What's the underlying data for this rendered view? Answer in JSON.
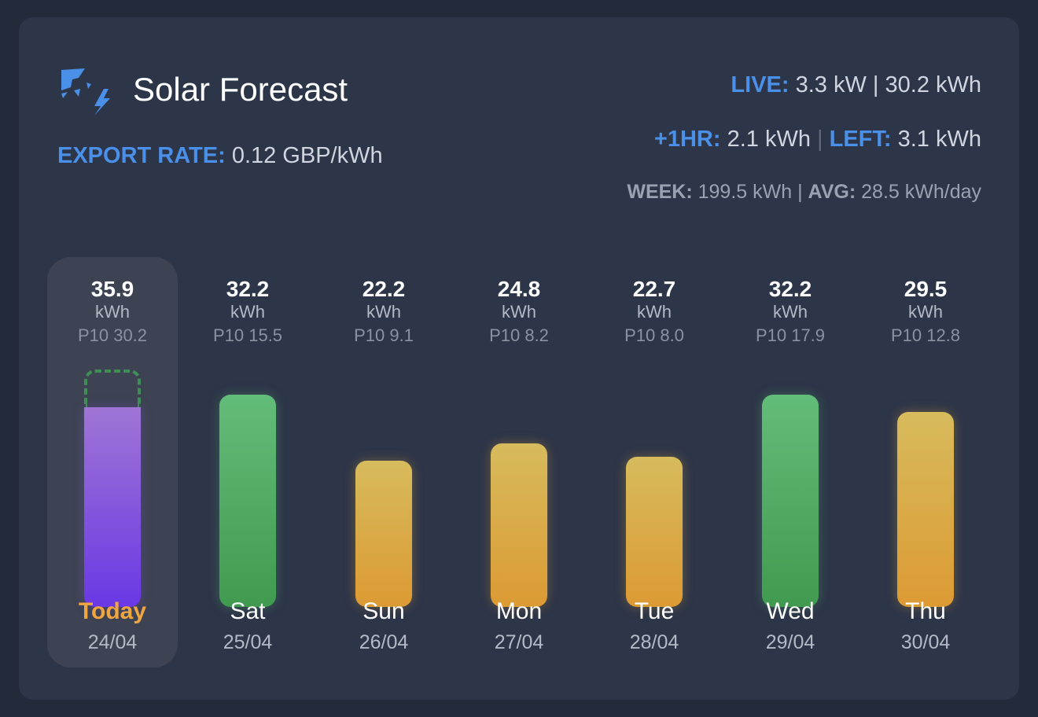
{
  "header": {
    "title": "Solar Forecast",
    "logo_icon": "solar-bolt-icon"
  },
  "export_rate": {
    "label": "EXPORT RATE:",
    "value": "0.12 GBP/kWh"
  },
  "live": {
    "label": "LIVE:",
    "value": "3.3 kW | 30.2 kWh"
  },
  "hour": {
    "label": "+1HR:",
    "value": "2.1 kWh",
    "separator": "|",
    "left_label": "LEFT:",
    "left_value": "3.1 kWh"
  },
  "week": {
    "label": "WEEK:",
    "value": "199.5 kWh |",
    "avg_label": "AVG:",
    "avg_value": "28.5 kWh/day"
  },
  "colors": {
    "accent_blue": "#4a8fe8",
    "today_orange": "#f0a640",
    "green": "#4fab62",
    "amber": "#dcaa45",
    "purple": "#7e50dc"
  },
  "chart_data": {
    "type": "bar",
    "unit": "kWh",
    "categories": [
      "Today",
      "Sat",
      "Sun",
      "Mon",
      "Tue",
      "Wed",
      "Thu"
    ],
    "dates": [
      "24/04",
      "25/04",
      "26/04",
      "27/04",
      "28/04",
      "29/04",
      "30/04"
    ],
    "values": [
      35.9,
      32.2,
      22.2,
      24.8,
      22.7,
      32.2,
      29.5
    ],
    "value_labels": [
      "35.9",
      "32.2",
      "22.2",
      "24.8",
      "22.7",
      "32.2",
      "29.5"
    ],
    "p10_values": [
      30.2,
      15.5,
      9.1,
      8.2,
      8.0,
      17.9,
      12.8
    ],
    "p10_labels": [
      "P10 30.2",
      "P10 15.5",
      "P10 9.1",
      "P10 8.2",
      "P10 8.0",
      "P10 17.9",
      "P10 12.8"
    ],
    "colors": [
      "purple",
      "green",
      "amber",
      "amber",
      "amber",
      "green",
      "amber"
    ],
    "today_index": 0,
    "legend": "none",
    "grid": false
  }
}
